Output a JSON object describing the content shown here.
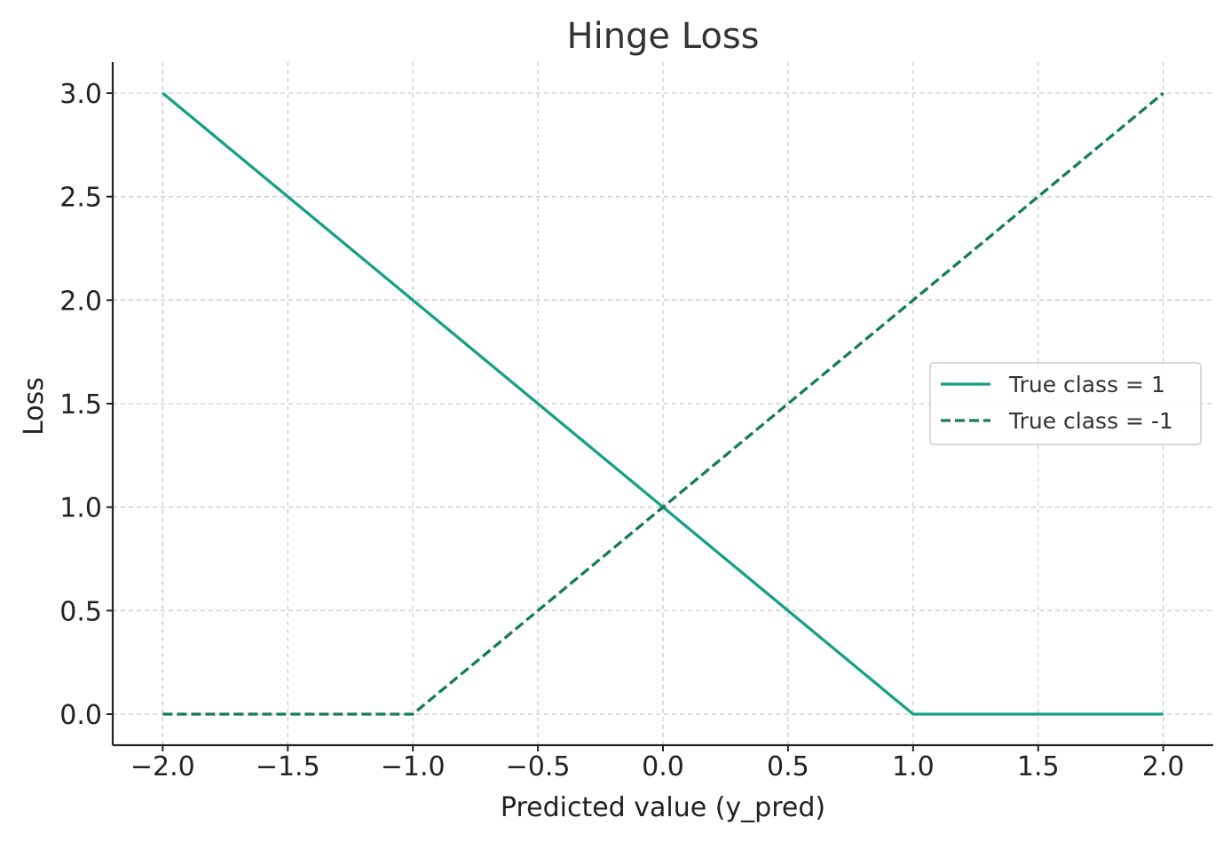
{
  "chart_data": {
    "type": "line",
    "title": "Hinge Loss",
    "xlabel": "Predicted value (y_pred)",
    "ylabel": "Loss",
    "xlim": [
      -2.2,
      2.2
    ],
    "ylim": [
      -0.15,
      3.15
    ],
    "xticks": [
      -2.0,
      -1.5,
      -1.0,
      -0.5,
      0.0,
      0.5,
      1.0,
      1.5,
      2.0
    ],
    "xtick_labels": [
      "−2.0",
      "−1.5",
      "−1.0",
      "−0.5",
      "0.0",
      "0.5",
      "1.0",
      "1.5",
      "2.0"
    ],
    "yticks": [
      0.0,
      0.5,
      1.0,
      1.5,
      2.0,
      2.5,
      3.0
    ],
    "ytick_labels": [
      "0.0",
      "0.5",
      "1.0",
      "1.5",
      "2.0",
      "2.5",
      "3.0"
    ],
    "grid": true,
    "legend_position": "center-right",
    "series": [
      {
        "name": "True class = 1",
        "style": "solid",
        "color": "#16a085",
        "x": [
          -2.0,
          1.0,
          2.0
        ],
        "y": [
          3.0,
          0.0,
          0.0
        ]
      },
      {
        "name": "True class = -1",
        "style": "dashed",
        "color": "#167a5e",
        "x": [
          -2.0,
          -1.0,
          2.0
        ],
        "y": [
          0.0,
          0.0,
          3.0
        ]
      }
    ]
  }
}
